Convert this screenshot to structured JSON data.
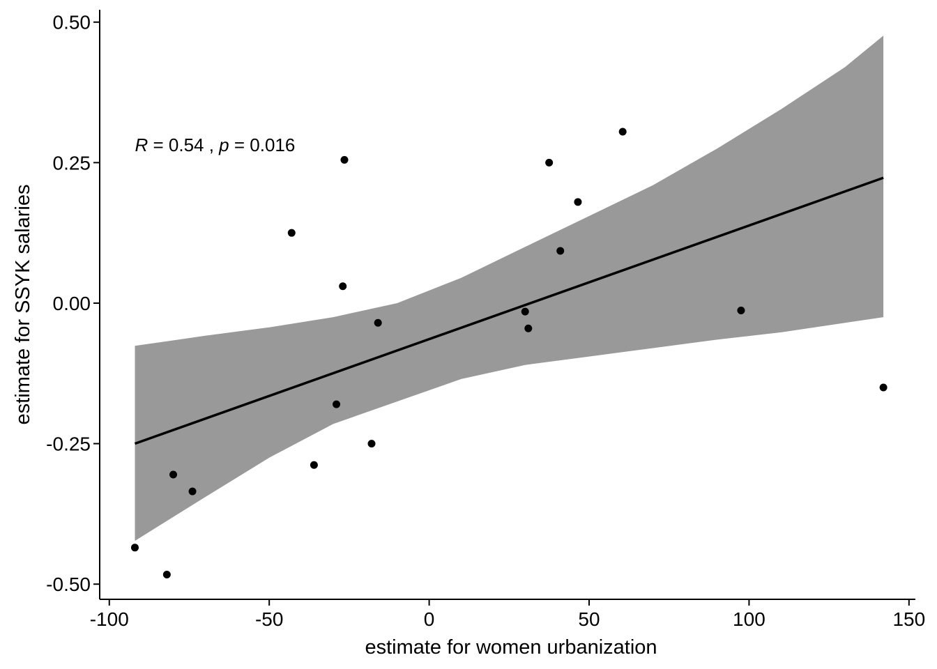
{
  "chart_data": {
    "type": "scatter",
    "xlabel": "estimate for women urbanization",
    "ylabel": "estimate for SSYK salaries",
    "xlim": [
      -103,
      152
    ],
    "ylim": [
      -0.527,
      0.522
    ],
    "x_ticks": [
      -100,
      -50,
      0,
      50,
      100,
      150
    ],
    "x_tick_labels": [
      "-100",
      "-50",
      "0",
      "50",
      "100",
      "150"
    ],
    "y_ticks": [
      0.5,
      0.25,
      0.0,
      -0.25,
      -0.5
    ],
    "y_tick_labels": [
      "0.50",
      "0.25",
      "0.00",
      "-0.25",
      "-0.50"
    ],
    "grid": false,
    "legend": "none",
    "annotation": {
      "r_symbol": "R",
      "r_text": " = 0.54 , ",
      "p_symbol": "p",
      "p_text": " = 0.016",
      "x": -92,
      "y": 0.27
    },
    "points": [
      {
        "x": -92,
        "y": -0.435
      },
      {
        "x": -82,
        "y": -0.483
      },
      {
        "x": -80,
        "y": -0.305
      },
      {
        "x": -74,
        "y": -0.335
      },
      {
        "x": -43,
        "y": 0.125
      },
      {
        "x": -36,
        "y": -0.288
      },
      {
        "x": -29,
        "y": -0.18
      },
      {
        "x": -27,
        "y": 0.03
      },
      {
        "x": -26.5,
        "y": 0.255
      },
      {
        "x": -18,
        "y": -0.25
      },
      {
        "x": -16,
        "y": -0.035
      },
      {
        "x": 30,
        "y": -0.015
      },
      {
        "x": 31,
        "y": -0.045
      },
      {
        "x": 37.5,
        "y": 0.25
      },
      {
        "x": 41,
        "y": 0.093
      },
      {
        "x": 46.5,
        "y": 0.18
      },
      {
        "x": 60.5,
        "y": 0.305
      },
      {
        "x": 97.5,
        "y": -0.013
      },
      {
        "x": 142,
        "y": -0.15
      }
    ],
    "fit_line": {
      "x": [
        -92,
        142
      ],
      "y": [
        -0.25,
        0.223
      ]
    },
    "confidence_band": {
      "x": [
        -92,
        -70,
        -50,
        -30,
        -10,
        10,
        30,
        50,
        70,
        90,
        110,
        130,
        142
      ],
      "lower": [
        -0.423,
        -0.345,
        -0.275,
        -0.215,
        -0.175,
        -0.135,
        -0.11,
        -0.095,
        -0.08,
        -0.065,
        -0.052,
        -0.035,
        -0.025
      ],
      "upper": [
        -0.076,
        -0.058,
        -0.043,
        -0.025,
        0.0,
        0.045,
        0.1,
        0.155,
        0.21,
        0.275,
        0.345,
        0.42,
        0.476
      ]
    },
    "colors": {
      "points": "#000000",
      "line": "#000000",
      "band": "#999999",
      "axis": "#000000"
    }
  }
}
